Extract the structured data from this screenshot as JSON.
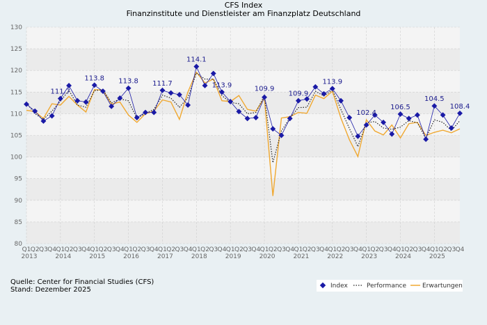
{
  "chart_data": {
    "type": "line",
    "title": "CFS Index",
    "subtitle": "Finanzinstitute und Dienstleister am Finanzplatz Deutschland",
    "ylim": [
      80,
      130
    ],
    "yticks": [
      80,
      85,
      90,
      95,
      100,
      105,
      110,
      115,
      120,
      125,
      130
    ],
    "grid": true,
    "legend_placement": "bottom-right",
    "quarter_labels": [
      "Q1",
      "Q2",
      "Q3",
      "Q4"
    ],
    "years": [
      "2013",
      "2014",
      "2015",
      "2016",
      "2017",
      "2018",
      "2019",
      "2020",
      "2021",
      "2022",
      "2023",
      "2024",
      "2025"
    ],
    "series": [
      {
        "name": "Index",
        "color": "#1a1aa6",
        "values": [
          112.2,
          110.6,
          108.3,
          109.5,
          113.5,
          116.5,
          113.0,
          112.7,
          116.6,
          115.2,
          111.7,
          113.6,
          115.9,
          109.1,
          110.3,
          110.3,
          115.4,
          114.8,
          114.4,
          112.0,
          120.9,
          116.5,
          119.3,
          115.0,
          112.8,
          110.5,
          108.9,
          109.1,
          113.8,
          106.5,
          105.0,
          108.9,
          113.0,
          113.4,
          116.2,
          114.6,
          115.8,
          113.0,
          109.1,
          104.8,
          107.4,
          109.7,
          108.0,
          105.3,
          109.9,
          108.9,
          109.7,
          104.1,
          111.8,
          109.7,
          106.7,
          110.1
        ]
      },
      {
        "name": "Performance",
        "color": "#222222",
        "values": [
          112.5,
          110.0,
          108.7,
          110.6,
          112.9,
          115.4,
          112.0,
          111.5,
          115.3,
          115.6,
          112.5,
          113.4,
          113.0,
          108.9,
          110.1,
          111.0,
          114.3,
          113.6,
          111.5,
          113.7,
          119.4,
          118.0,
          118.0,
          114.2,
          112.6,
          112.3,
          110.0,
          110.3,
          114.2,
          98.7,
          106.0,
          109.0,
          111.4,
          111.5,
          115.2,
          114.1,
          115.5,
          111.0,
          106.6,
          102.4,
          107.9,
          108.2,
          106.7,
          106.4,
          106.9,
          108.4,
          107.9,
          104.3,
          108.6,
          108.0,
          106.1,
          108.4
        ]
      },
      {
        "name": "Erwartungen",
        "color": "#f0a830",
        "values": [
          110.8,
          110.5,
          108.9,
          112.3,
          112.0,
          114.0,
          112.0,
          110.4,
          115.6,
          115.4,
          112.2,
          112.7,
          109.7,
          108.0,
          110.0,
          110.6,
          113.2,
          112.7,
          108.7,
          115.0,
          119.6,
          117.1,
          118.0,
          113.0,
          112.8,
          114.2,
          111.0,
          110.6,
          113.6,
          91.0,
          109.0,
          109.3,
          110.3,
          110.1,
          114.3,
          113.5,
          115.2,
          109.0,
          104.0,
          100.1,
          108.6,
          106.0,
          105.1,
          107.4,
          104.4,
          107.7,
          108.0,
          105.0,
          105.7,
          106.2,
          105.6,
          106.5
        ]
      }
    ],
    "data_labels": [
      {
        "index": 4,
        "text": "111.7"
      },
      {
        "index": 8,
        "text": "113.8"
      },
      {
        "index": 12,
        "text": "113.8"
      },
      {
        "index": 16,
        "text": "111.7"
      },
      {
        "index": 20,
        "text": "114.1"
      },
      {
        "index": 23,
        "text": "113.9"
      },
      {
        "index": 28,
        "text": "109.9"
      },
      {
        "index": 32,
        "text": "109.9"
      },
      {
        "index": 36,
        "text": "113.9"
      },
      {
        "index": 40,
        "text": "102.4"
      },
      {
        "index": 44,
        "text": "106.5"
      },
      {
        "index": 48,
        "text": "104.5"
      },
      {
        "index": 51,
        "text": "108.4"
      }
    ]
  },
  "footer": {
    "source": "Quelle: Center for Financial Studies (CFS)",
    "date": "Stand: Dezember 2025"
  }
}
